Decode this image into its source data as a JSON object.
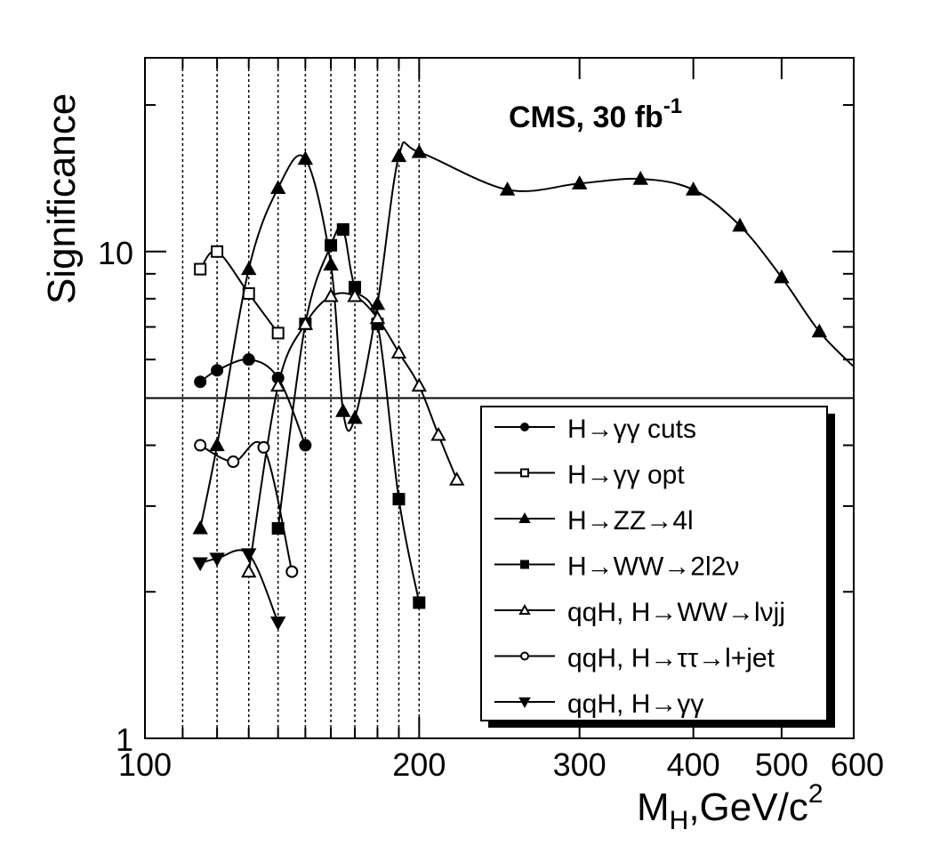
{
  "chart_data": {
    "type": "line",
    "title": "CMS, 30 fb",
    "title_superscript": "-1",
    "xlabel": "M",
    "xlabel_subscript": "H",
    "xlabel_rest": ",GeV/c",
    "xlabel_superscript": "2",
    "ylabel": "Significance",
    "xscale": "log",
    "yscale": "log",
    "xlim": [
      100,
      600
    ],
    "ylim": [
      1,
      25
    ],
    "x_tick_labels": [
      "100",
      "200",
      "300",
      "400",
      "500",
      "600"
    ],
    "x_tick_values": [
      100,
      200,
      300,
      400,
      500,
      600
    ],
    "y_tick_labels": [
      "1",
      "10"
    ],
    "y_tick_values": [
      1,
      10
    ],
    "reference_line": 5,
    "vertical_dotted_lines": [
      110,
      120,
      130,
      140,
      150,
      160,
      170,
      180,
      190,
      200
    ],
    "legend_placement": "bottom-right",
    "series": [
      {
        "name": "H→γγ cuts",
        "marker": "filled-circle",
        "x": [
          115,
          120,
          130,
          140,
          150
        ],
        "y": [
          5.4,
          5.7,
          6.0,
          5.5,
          4.0
        ]
      },
      {
        "name": "H→γγ opt",
        "marker": "open-square",
        "x": [
          115,
          120,
          130,
          140
        ],
        "y": [
          9.2,
          10.0,
          8.2,
          6.8
        ]
      },
      {
        "name": "H→ZZ→4l",
        "marker": "filled-triangle-up",
        "x": [
          115,
          120,
          130,
          140,
          150,
          160,
          165,
          170,
          180,
          190,
          200,
          250,
          300,
          350,
          400,
          450,
          500,
          550,
          600
        ],
        "y": [
          2.7,
          4.0,
          9.2,
          13.5,
          15.5,
          9.4,
          4.7,
          4.55,
          7.8,
          15.7,
          16.0,
          13.4,
          13.8,
          14.1,
          13.4,
          11.3,
          8.85,
          6.85,
          5.8
        ]
      },
      {
        "name": "H→WW→2l2ν",
        "marker": "filled-square",
        "x": [
          140,
          150,
          160,
          165,
          170,
          180,
          190,
          200
        ],
        "y": [
          2.7,
          7.1,
          10.3,
          11.1,
          8.45,
          7.1,
          3.1,
          1.9
        ]
      },
      {
        "name": "qqH, H→WW→lνjj",
        "marker": "open-triangle-up",
        "x": [
          130,
          140,
          150,
          160,
          170,
          180,
          190,
          200,
          210,
          220
        ],
        "y": [
          2.2,
          5.3,
          7.1,
          8.1,
          8.1,
          7.3,
          6.2,
          5.3,
          4.2,
          3.4
        ]
      },
      {
        "name": "qqH, H→ττ→l+jet",
        "marker": "open-circle",
        "x": [
          115,
          125,
          135,
          145
        ],
        "y": [
          4.0,
          3.7,
          3.96,
          2.2
        ]
      },
      {
        "name": "qqH, H→γγ",
        "marker": "filled-triangle-down",
        "x": [
          115,
          120,
          130,
          140
        ],
        "y": [
          2.29,
          2.34,
          2.39,
          1.73
        ]
      }
    ]
  }
}
